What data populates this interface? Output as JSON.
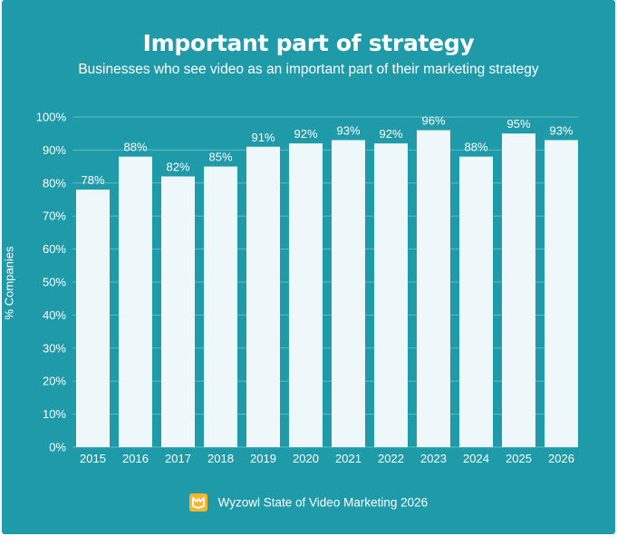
{
  "title": "Important part of strategy",
  "subtitle": "Businesses who see video as an important part of their marketing strategy",
  "source": "Wyzowl State of Video Marketing 2026",
  "colors": {
    "background": "#1e9aa8",
    "bar": "#eef8fa",
    "text": "#ffffff",
    "grid": "#5fbcc6",
    "logo": "#f5b52e"
  },
  "chart_data": {
    "type": "bar",
    "ylabel": "% Companies",
    "xlabel": "",
    "categories": [
      "2015",
      "2016",
      "2017",
      "2018",
      "2019",
      "2020",
      "2021",
      "2022",
      "2023",
      "2024",
      "2025",
      "2026"
    ],
    "values": [
      78,
      88,
      82,
      85,
      91,
      92,
      93,
      92,
      96,
      88,
      95,
      93
    ],
    "data_labels": [
      "78%",
      "88%",
      "82%",
      "85%",
      "91%",
      "92%",
      "93%",
      "92%",
      "96%",
      "88%",
      "95%",
      "93%"
    ],
    "ylim": [
      0,
      100
    ],
    "yticks": [
      "0%",
      "10%",
      "20%",
      "30%",
      "40%",
      "50%",
      "60%",
      "70%",
      "80%",
      "90%",
      "100%"
    ],
    "grid": true
  }
}
